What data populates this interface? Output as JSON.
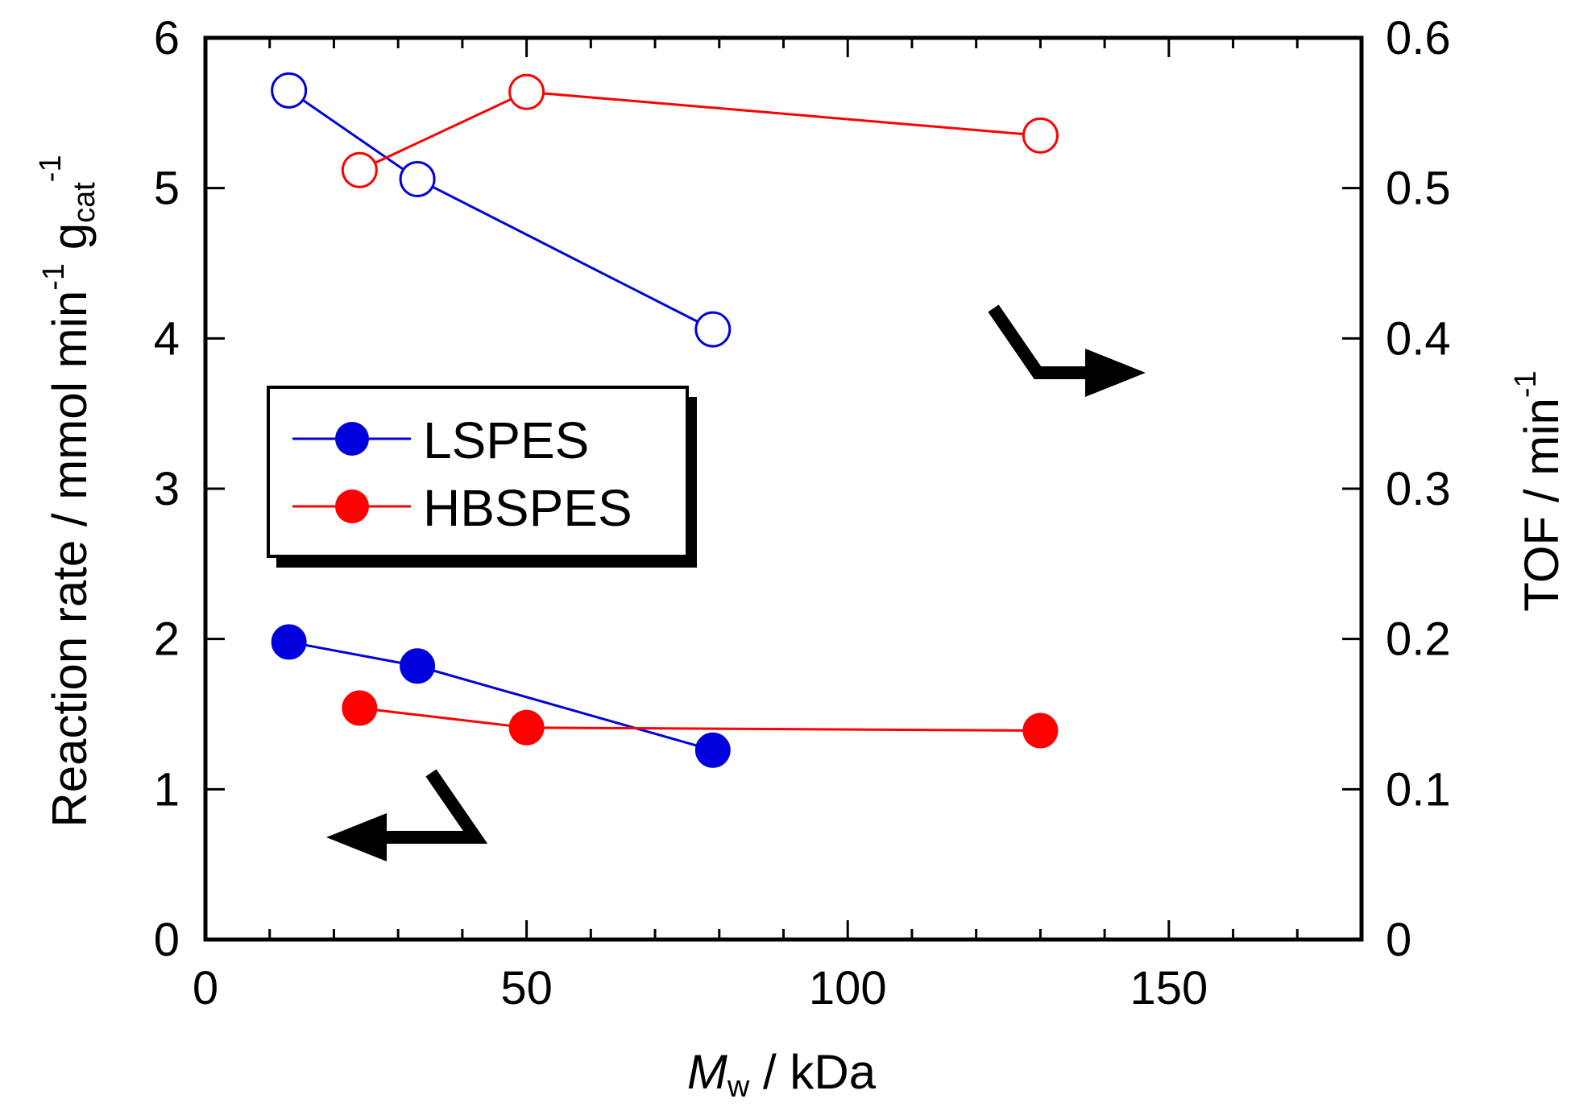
{
  "chart_data": {
    "type": "scatter",
    "title": "",
    "x_axis": {
      "label_italic": "M",
      "label_sub": "w",
      "label_rest": " / kDa",
      "range": [
        0,
        180
      ],
      "ticks": [
        0,
        50,
        100,
        150
      ],
      "tick_labels": [
        "0",
        "50",
        "100",
        "150"
      ],
      "minor_step": 10
    },
    "y_left": {
      "label_main": "Reaction rate / mmol min",
      "label_sup1": "-1",
      "label_g": " g",
      "label_sub": "cat",
      "label_sup2": "-1",
      "range": [
        0,
        6
      ],
      "ticks": [
        0,
        1,
        2,
        3,
        4,
        5,
        6
      ],
      "tick_labels": [
        "0",
        "1",
        "2",
        "3",
        "4",
        "5",
        "6"
      ]
    },
    "y_right": {
      "label_main": "TOF / min",
      "label_sup": "-1",
      "range": [
        0,
        0.6
      ],
      "ticks": [
        0,
        0.1,
        0.2,
        0.3,
        0.4,
        0.5,
        0.6
      ],
      "tick_labels": [
        "0",
        "0.1",
        "0.2",
        "0.3",
        "0.4",
        "0.5",
        "0.6"
      ]
    },
    "series": [
      {
        "name": "LSPES",
        "color": "#0000dd",
        "axis": "left",
        "marker": "filled",
        "x": [
          13,
          33,
          79
        ],
        "y": [
          1.98,
          1.82,
          1.26
        ]
      },
      {
        "name": "HBSPES",
        "color": "#ff0000",
        "axis": "left",
        "marker": "filled",
        "x": [
          24,
          50,
          130
        ],
        "y": [
          1.54,
          1.41,
          1.39
        ]
      },
      {
        "name": "LSPES",
        "color": "#0000dd",
        "axis": "right",
        "marker": "open",
        "x": [
          13,
          33,
          79
        ],
        "y": [
          0.565,
          0.506,
          0.406
        ]
      },
      {
        "name": "HBSPES",
        "color": "#ff0000",
        "axis": "right",
        "marker": "open",
        "x": [
          24,
          50,
          130
        ],
        "y": [
          0.512,
          0.564,
          0.535
        ]
      }
    ],
    "legend": {
      "placement": "middle-left",
      "entries": [
        {
          "label": "LSPES",
          "color": "#0000dd"
        },
        {
          "label": "HBSPES",
          "color": "#ff0000"
        }
      ]
    },
    "annotations": [
      {
        "type": "arrow",
        "direction": "left",
        "meaning": "filled markers use left axis"
      },
      {
        "type": "arrow",
        "direction": "right",
        "meaning": "open markers use right axis"
      }
    ]
  }
}
